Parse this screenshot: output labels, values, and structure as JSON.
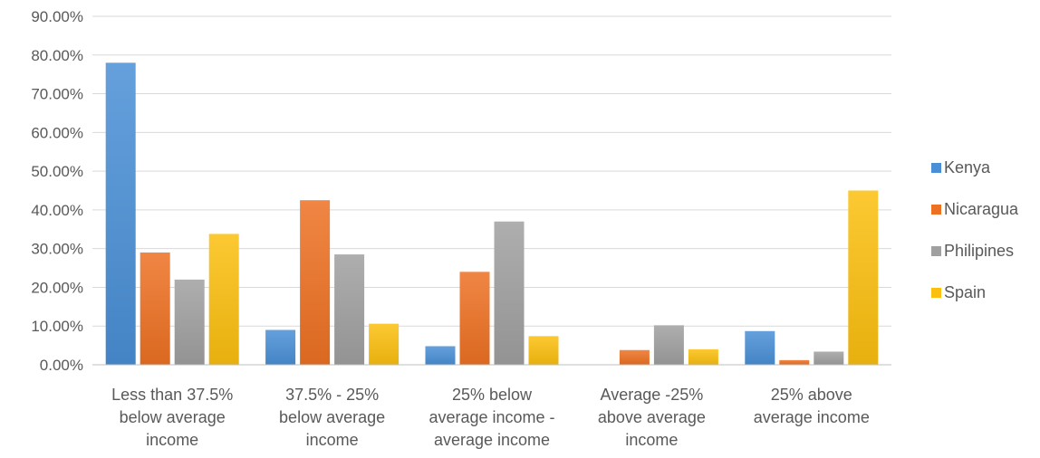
{
  "chart_data": {
    "type": "bar",
    "title": "",
    "xlabel": "",
    "ylabel": "",
    "ylim": [
      0,
      90
    ],
    "y_tick_values": [
      0,
      10,
      20,
      30,
      40,
      50,
      60,
      70,
      80,
      90
    ],
    "y_tick_labels": [
      "0.00%",
      "10.00%",
      "20.00%",
      "30.00%",
      "40.00%",
      "50.00%",
      "60.00%",
      "70.00%",
      "80.00%",
      "90.00%"
    ],
    "categories": [
      [
        "Less than 37.5%",
        "below average",
        "income"
      ],
      [
        "37.5%   - 25%",
        "below average",
        "income"
      ],
      [
        "25% below",
        "average income -",
        "average income"
      ],
      [
        "Average  -25%",
        "above average",
        "income"
      ],
      [
        "25% above",
        "average income"
      ]
    ],
    "series": [
      {
        "name": "Kenya",
        "color": "#4a8fd6",
        "values": [
          78.0,
          9.0,
          4.8,
          0.0,
          8.7
        ]
      },
      {
        "name": "Nicaragua",
        "color": "#ed7123",
        "values": [
          29.0,
          42.5,
          24.0,
          3.8,
          1.2
        ]
      },
      {
        "name": "Philipines",
        "color": "#a0a0a0",
        "values": [
          22.0,
          28.5,
          37.0,
          10.2,
          3.4
        ]
      },
      {
        "name": "Spain",
        "color": "#fbbf0f",
        "values": [
          33.8,
          10.6,
          7.4,
          4.0,
          45.0
        ]
      }
    ],
    "grid": true,
    "legend_position": "right"
  }
}
